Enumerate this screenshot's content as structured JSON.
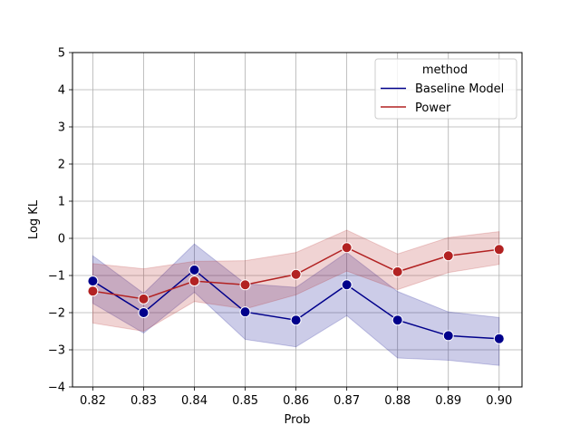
{
  "chart_data": {
    "type": "line",
    "xlabel": "Prob",
    "ylabel": "Log KL",
    "x": [
      0.82,
      0.83,
      0.84,
      0.85,
      0.86,
      0.87,
      0.88,
      0.89,
      0.9
    ],
    "x_tick_labels": [
      "0.82",
      "0.83",
      "0.84",
      "0.85",
      "0.86",
      "0.87",
      "0.88",
      "0.89",
      "0.90"
    ],
    "y_ticks": [
      -4,
      -3,
      -2,
      -1,
      0,
      1,
      2,
      3,
      4,
      5
    ],
    "y_tick_labels": [
      "−4",
      "−3",
      "−2",
      "−1",
      "0",
      "1",
      "2",
      "3",
      "4",
      "5"
    ],
    "xlim": [
      0.816,
      0.9045
    ],
    "ylim": [
      -4,
      5
    ],
    "grid": true,
    "legend": {
      "title": "method",
      "placement": "top-right"
    },
    "series": [
      {
        "name": "Baseline Model",
        "color": "#00008b",
        "values": [
          -1.15,
          -2.0,
          -0.85,
          -1.98,
          -2.2,
          -1.25,
          -2.2,
          -2.62,
          -2.7
        ],
        "ci_lower": [
          -1.75,
          -2.55,
          -1.45,
          -2.72,
          -2.92,
          -2.08,
          -3.22,
          -3.28,
          -3.42
        ],
        "ci_upper": [
          -0.47,
          -1.48,
          -0.15,
          -1.22,
          -1.32,
          -0.38,
          -1.43,
          -1.98,
          -2.13
        ]
      },
      {
        "name": "Power",
        "color": "#b22222",
        "values": [
          -1.42,
          -1.63,
          -1.15,
          -1.25,
          -0.97,
          -0.25,
          -0.9,
          -0.47,
          -0.3
        ],
        "ci_lower": [
          -2.28,
          -2.5,
          -1.7,
          -1.9,
          -1.52,
          -0.88,
          -1.38,
          -0.92,
          -0.7
        ],
        "ci_upper": [
          -0.68,
          -0.82,
          -0.62,
          -0.6,
          -0.38,
          0.22,
          -0.42,
          0.02,
          0.18
        ]
      }
    ]
  }
}
